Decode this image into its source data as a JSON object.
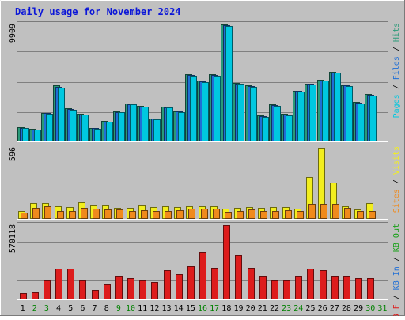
{
  "chart_data": {
    "type": "bar",
    "title": "Daily usage for November 2024",
    "categories": [
      "1",
      "2",
      "3",
      "4",
      "5",
      "6",
      "7",
      "8",
      "9",
      "10",
      "11",
      "12",
      "13",
      "14",
      "15",
      "16",
      "17",
      "18",
      "19",
      "20",
      "21",
      "22",
      "23",
      "24",
      "25",
      "26",
      "27",
      "28",
      "29",
      "30",
      "31"
    ],
    "weekend_days": [
      "2",
      "3",
      "9",
      "10",
      "16",
      "17",
      "23",
      "24",
      "30",
      "31"
    ],
    "panels": [
      {
        "id": "top",
        "ymax_label": "9909",
        "ylim": [
          0,
          9909
        ],
        "right_label": [
          {
            "text": "Pages",
            "color": "#00c8e0"
          },
          {
            "text": " / ",
            "color": "#000000"
          },
          {
            "text": "Files",
            "color": "#1f6fd6"
          },
          {
            "text": " / ",
            "color": "#000000"
          },
          {
            "text": "Hits",
            "color": "#2a9a78"
          }
        ],
        "series": [
          {
            "key": "hits",
            "color": "#2a9a78",
            "values": [
              1130,
              1020,
              2380,
              4730,
              2770,
              2320,
              1100,
              1700,
              2510,
              3190,
              2960,
              1910,
              2900,
              2510,
              5640,
              5110,
              5640,
              9909,
              4950,
              4700,
              2140,
              3070,
              2280,
              4280,
              4860,
              5200,
              5870,
              4730,
              3300,
              3950,
              0
            ]
          },
          {
            "key": "files",
            "color": "#1f6fd6",
            "values": [
              1080,
              960,
              2330,
              4600,
              2680,
              2250,
              1050,
              1650,
              2460,
              3120,
              2920,
              1880,
              2850,
              2480,
              5580,
              5060,
              5600,
              9850,
              4880,
              4650,
              2080,
              3010,
              2220,
              4230,
              4820,
              5150,
              5820,
              4700,
              3250,
              3900,
              0
            ]
          },
          {
            "key": "pages",
            "color": "#00c8e0",
            "values": [
              1050,
              930,
              2280,
              4520,
              2630,
              2200,
              1020,
              1600,
              2420,
              3070,
              2880,
              1850,
              2800,
              2440,
              5520,
              5000,
              5550,
              9780,
              4820,
              4600,
              2040,
              2960,
              2180,
              4180,
              4780,
              5100,
              5770,
              4650,
              3200,
              3860,
              0
            ]
          }
        ]
      },
      {
        "id": "middle",
        "ymax_label": "596",
        "ylim": [
          0,
          596
        ],
        "right_label": [
          {
            "text": "Sites",
            "color": "#f08a1c"
          },
          {
            "text": " / ",
            "color": "#000000"
          },
          {
            "text": "Visits",
            "color": "#f2ee1e"
          }
        ],
        "series": [
          {
            "key": "visits",
            "color": "#f2ee1e",
            "values": [
              60,
              125,
              125,
              100,
              95,
              135,
              110,
              105,
              90,
              90,
              105,
              95,
              100,
              95,
              100,
              100,
              100,
              80,
              85,
              95,
              85,
              95,
              95,
              80,
              350,
              596,
              300,
              100,
              75,
              130,
              0
            ]
          },
          {
            "key": "sites",
            "color": "#f08a1c",
            "values": [
              50,
              90,
              100,
              60,
              60,
              90,
              80,
              75,
              75,
              60,
              70,
              60,
              60,
              70,
              80,
              80,
              80,
              55,
              60,
              75,
              60,
              60,
              70,
              60,
              120,
              120,
              120,
              85,
              60,
              60,
              0
            ]
          }
        ]
      },
      {
        "id": "bottom",
        "ymax_label": "570118",
        "ylim": [
          0,
          570118
        ],
        "right_label": [
          {
            "text": "KB F",
            "color": "#dd1c1c"
          },
          {
            "text": " / ",
            "color": "#000000"
          },
          {
            "text": "KB In",
            "color": "#1f6fd6"
          },
          {
            "text": " / ",
            "color": "#000000"
          },
          {
            "text": "KB Out",
            "color": "#16a016"
          }
        ],
        "series": [
          {
            "key": "kbf",
            "color": "#dd1c1c",
            "values": [
              40000,
              50000,
              140000,
              230000,
              230000,
              140000,
              70000,
              110000,
              180000,
              160000,
              140000,
              130000,
              220000,
              190000,
              250000,
              360000,
              240000,
              570118,
              340000,
              240000,
              180000,
              140000,
              140000,
              180000,
              230000,
              220000,
              180000,
              180000,
              160000,
              160000,
              0
            ]
          }
        ]
      }
    ],
    "grid": true,
    "colors": {
      "background": "#c0c0c0",
      "frame_dark": "#7a7a7a",
      "frame_light": "#ffffff",
      "grid": "#808080",
      "title": "#0b16d8",
      "weekday_label": "#000000",
      "weekend_label": "#008000"
    }
  }
}
